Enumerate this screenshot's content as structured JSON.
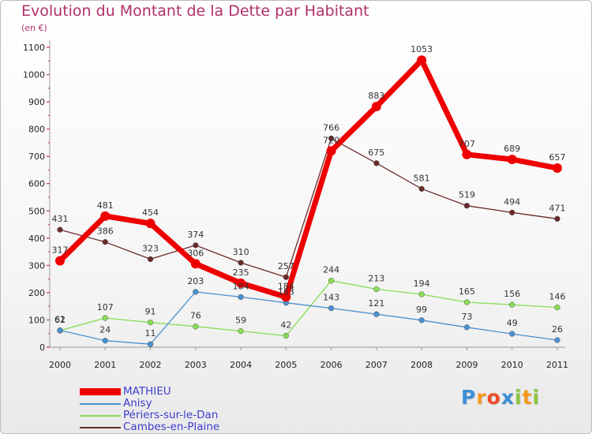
{
  "chart_data": {
    "type": "line",
    "title": "Evolution du Montant de la Dette par Habitant",
    "subtitle": "(en €)",
    "x": [
      "2000",
      "2001",
      "2002",
      "2003",
      "2004",
      "2005",
      "2006",
      "2007",
      "2008",
      "2009",
      "2010",
      "2011"
    ],
    "ylim": [
      0,
      1100
    ],
    "yticks": [
      0,
      100,
      200,
      300,
      400,
      500,
      600,
      700,
      800,
      900,
      1000,
      1100
    ],
    "grid": false,
    "legend_position": "bottom-left",
    "series": [
      {
        "name": "MATHIEU",
        "color": "#ee0000",
        "values": [
          317,
          481,
          454,
          306,
          235,
          184,
          720,
          883,
          1053,
          707,
          689,
          657
        ]
      },
      {
        "name": "Anisy",
        "color": "#4a90d0",
        "values": [
          62,
          24,
          11,
          203,
          184,
          163,
          143,
          121,
          99,
          73,
          49,
          26
        ]
      },
      {
        "name": "Périers-sur-le-Dan",
        "color": "#88dd55",
        "values": [
          61,
          107,
          91,
          76,
          59,
          42,
          244,
          213,
          194,
          165,
          156,
          146
        ]
      },
      {
        "name": "Cambes-en-Plaine",
        "color": "#6b2a2a",
        "values": [
          431,
          386,
          323,
          374,
          310,
          257,
          766,
          675,
          581,
          519,
          494,
          471
        ]
      }
    ]
  },
  "logo": {
    "letters": [
      {
        "char": "P",
        "color": "#3a8fd8"
      },
      {
        "char": "r",
        "color": "#f39a1e"
      },
      {
        "char": "o",
        "color": "#ef4b25"
      },
      {
        "char": "x",
        "color": "#3a8fd8"
      },
      {
        "char": "i",
        "color": "#8cc63f"
      },
      {
        "char": "t",
        "color": "#f39a1e"
      },
      {
        "char": "i",
        "color": "#8cc63f"
      }
    ]
  }
}
